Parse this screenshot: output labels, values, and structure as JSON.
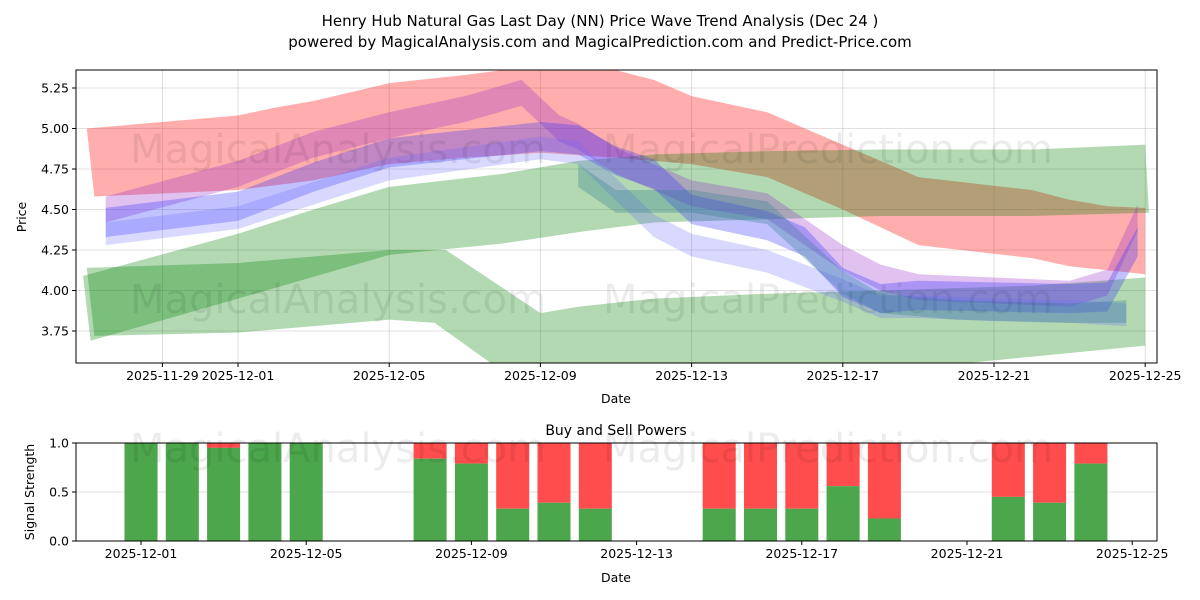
{
  "chart_data": [
    {
      "type": "area",
      "title_line1": "Henry Hub Natural Gas Last Day  (NN) Price Wave Trend Analysis (Dec 24 )",
      "title_line2": "powered by MagicalAnalysis.com and MagicalPrediction.com and Predict-Price.com",
      "xlabel": "Date",
      "ylabel": "Price",
      "ylim": [
        3.55,
        5.36
      ],
      "x_unit": "days offset from 2025-12-01",
      "xlim": [
        -4.2,
        24.3
      ],
      "grid": true,
      "x_ticks": [
        {
          "d": -2,
          "label": "2025-11-29"
        },
        {
          "d": 0,
          "label": "2025-12-01"
        },
        {
          "d": 4,
          "label": "2025-12-05"
        },
        {
          "d": 8,
          "label": "2025-12-09"
        },
        {
          "d": 12,
          "label": "2025-12-13"
        },
        {
          "d": 16,
          "label": "2025-12-17"
        },
        {
          "d": 20,
          "label": "2025-12-21"
        },
        {
          "d": 24,
          "label": "2025-12-25"
        }
      ],
      "y_ticks": [
        {
          "v": 3.75,
          "label": "3.75"
        },
        {
          "v": 4.0,
          "label": "4.00"
        },
        {
          "v": 4.25,
          "label": "4.25"
        },
        {
          "v": 4.5,
          "label": "4.50"
        },
        {
          "v": 4.75,
          "label": "4.75"
        },
        {
          "v": 5.0,
          "label": "5.00"
        },
        {
          "v": 5.25,
          "label": "5.25"
        }
      ],
      "bands": [
        {
          "name": "red-band",
          "color": "#ff0000",
          "opacity": 0.32,
          "upper": [
            [
              -4,
              5.0
            ],
            [
              0,
              5.08
            ],
            [
              1,
              5.13
            ],
            [
              2,
              5.17
            ],
            [
              4,
              5.28
            ],
            [
              6,
              5.33
            ],
            [
              7,
              5.36
            ],
            [
              8,
              5.4
            ],
            [
              9,
              5.4
            ],
            [
              10,
              5.36
            ],
            [
              11,
              5.3
            ],
            [
              12,
              5.2
            ],
            [
              14,
              5.1
            ],
            [
              16,
              4.9
            ],
            [
              18,
              4.7
            ],
            [
              21,
              4.62
            ],
            [
              22,
              4.56
            ],
            [
              23,
              4.52
            ],
            [
              24,
              4.51
            ]
          ],
          "lower": [
            [
              -3.8,
              4.58
            ],
            [
              0,
              4.62
            ],
            [
              2,
              4.68
            ],
            [
              4,
              4.78
            ],
            [
              6,
              4.82
            ],
            [
              8,
              4.85
            ],
            [
              10,
              4.82
            ],
            [
              12,
              4.78
            ],
            [
              14,
              4.7
            ],
            [
              16,
              4.5
            ],
            [
              18,
              4.28
            ],
            [
              21,
              4.2
            ],
            [
              22,
              4.15
            ],
            [
              24,
              4.1
            ]
          ]
        },
        {
          "name": "green-band-upper",
          "color": "#008000",
          "opacity": 0.3,
          "upper": [
            [
              -4.1,
              4.09
            ],
            [
              0,
              4.35
            ],
            [
              2,
              4.5
            ],
            [
              4,
              4.64
            ],
            [
              7,
              4.72
            ],
            [
              9,
              4.8
            ],
            [
              11,
              4.84
            ],
            [
              14,
              4.86
            ],
            [
              17,
              4.87
            ],
            [
              21,
              4.87
            ],
            [
              24,
              4.9
            ]
          ],
          "lower": [
            [
              -3.9,
              3.69
            ],
            [
              0,
              3.95
            ],
            [
              4,
              4.22
            ],
            [
              7,
              4.29
            ],
            [
              9,
              4.36
            ],
            [
              11,
              4.42
            ],
            [
              14,
              4.44
            ],
            [
              17,
              4.46
            ],
            [
              21,
              4.46
            ],
            [
              24.1,
              4.48
            ]
          ]
        },
        {
          "name": "green-band-lower",
          "color": "#008000",
          "opacity": 0.3,
          "upper": [
            [
              -4,
              4.14
            ],
            [
              0,
              4.17
            ],
            [
              4,
              4.25
            ],
            [
              5.5,
              4.25
            ],
            [
              8,
              3.86
            ],
            [
              9,
              3.9
            ],
            [
              11,
              3.95
            ],
            [
              14,
              3.98
            ],
            [
              17,
              4.0
            ],
            [
              21,
              4.03
            ],
            [
              24,
              4.08
            ]
          ],
          "lower": [
            [
              -3.8,
              3.72
            ],
            [
              0,
              3.74
            ],
            [
              4,
              3.82
            ],
            [
              5.2,
              3.8
            ],
            [
              7,
              3.5
            ],
            [
              17,
              3.5
            ],
            [
              24,
              3.66
            ]
          ]
        },
        {
          "name": "purple-wave-band",
          "color": "#9933cc",
          "opacity": 0.3,
          "upper": [
            [
              -3.5,
              4.58
            ],
            [
              0,
              4.8
            ],
            [
              2,
              4.98
            ],
            [
              4,
              5.1
            ],
            [
              6,
              5.2
            ],
            [
              7.5,
              5.3
            ],
            [
              8.5,
              5.08
            ],
            [
              9,
              5.03
            ],
            [
              10,
              4.88
            ],
            [
              11,
              4.78
            ],
            [
              12,
              4.68
            ],
            [
              14,
              4.6
            ],
            [
              16,
              4.28
            ],
            [
              17,
              4.16
            ],
            [
              18,
              4.1
            ],
            [
              20,
              4.08
            ],
            [
              22,
              4.06
            ],
            [
              23,
              4.13
            ],
            [
              23.8,
              4.53
            ]
          ],
          "lower": [
            [
              -3.5,
              4.42
            ],
            [
              0,
              4.64
            ],
            [
              2,
              4.82
            ],
            [
              4,
              4.94
            ],
            [
              6,
              5.04
            ],
            [
              7.5,
              5.14
            ],
            [
              8.5,
              4.92
            ],
            [
              9,
              4.87
            ],
            [
              10,
              4.72
            ],
            [
              11,
              4.62
            ],
            [
              12,
              4.52
            ],
            [
              14,
              4.44
            ],
            [
              16,
              4.12
            ],
            [
              17,
              4.0
            ],
            [
              18,
              3.94
            ],
            [
              20,
              3.92
            ],
            [
              22,
              3.9
            ],
            [
              23,
              3.97
            ],
            [
              23.8,
              4.37
            ]
          ]
        },
        {
          "name": "blue-wave-band",
          "color": "#3333ff",
          "opacity": 0.3,
          "upper": [
            [
              -3.5,
              4.51
            ],
            [
              0,
              4.61
            ],
            [
              2,
              4.79
            ],
            [
              4,
              4.94
            ],
            [
              6,
              4.99
            ],
            [
              8,
              5.04
            ],
            [
              9,
              5.02
            ],
            [
              10,
              4.89
            ],
            [
              11,
              4.81
            ],
            [
              12,
              4.59
            ],
            [
              14,
              4.49
            ],
            [
              15,
              4.39
            ],
            [
              16,
              4.14
            ],
            [
              17,
              4.04
            ],
            [
              18,
              4.06
            ],
            [
              20,
              4.05
            ],
            [
              22,
              4.04
            ],
            [
              23,
              4.05
            ],
            [
              23.8,
              4.39
            ]
          ],
          "lower": [
            [
              -3.5,
              4.33
            ],
            [
              0,
              4.43
            ],
            [
              2,
              4.61
            ],
            [
              4,
              4.76
            ],
            [
              6,
              4.81
            ],
            [
              8,
              4.86
            ],
            [
              9,
              4.84
            ],
            [
              10,
              4.71
            ],
            [
              11,
              4.63
            ],
            [
              12,
              4.41
            ],
            [
              14,
              4.31
            ],
            [
              15,
              4.21
            ],
            [
              16,
              3.96
            ],
            [
              17,
              3.86
            ],
            [
              18,
              3.88
            ],
            [
              20,
              3.87
            ],
            [
              22,
              3.86
            ],
            [
              23,
              3.87
            ],
            [
              23.8,
              4.21
            ]
          ]
        },
        {
          "name": "lightblue-wave-band",
          "color": "#6666ff",
          "opacity": 0.25,
          "upper": [
            [
              -3.5,
              4.42
            ],
            [
              0,
              4.52
            ],
            [
              4,
              4.82
            ],
            [
              8,
              4.95
            ],
            [
              9,
              4.92
            ],
            [
              11,
              4.47
            ],
            [
              12,
              4.35
            ],
            [
              14,
              4.25
            ],
            [
              16,
              4.07
            ],
            [
              17,
              3.97
            ],
            [
              18,
              3.97
            ],
            [
              20,
              3.95
            ],
            [
              22,
              3.94
            ],
            [
              23.5,
              3.92
            ]
          ],
          "lower": [
            [
              -3.5,
              4.28
            ],
            [
              0,
              4.38
            ],
            [
              4,
              4.68
            ],
            [
              8,
              4.81
            ],
            [
              9,
              4.78
            ],
            [
              11,
              4.33
            ],
            [
              12,
              4.21
            ],
            [
              14,
              4.11
            ],
            [
              16,
              3.93
            ],
            [
              17,
              3.83
            ],
            [
              18,
              3.83
            ],
            [
              20,
              3.81
            ],
            [
              22,
              3.8
            ],
            [
              23.5,
              3.78
            ]
          ]
        },
        {
          "name": "teal-wave-band",
          "color": "#2a7a8a",
          "opacity": 0.3,
          "upper": [
            [
              9,
              4.78
            ],
            [
              10,
              4.62
            ],
            [
              12,
              4.62
            ],
            [
              14,
              4.55
            ],
            [
              16,
              4.12
            ],
            [
              17,
              3.98
            ],
            [
              19,
              3.94
            ],
            [
              22,
              3.92
            ],
            [
              23.5,
              3.94
            ]
          ],
          "lower": [
            [
              9,
              4.64
            ],
            [
              10,
              4.48
            ],
            [
              12,
              4.48
            ],
            [
              14,
              4.41
            ],
            [
              16,
              3.98
            ],
            [
              17,
              3.86
            ],
            [
              19,
              3.82
            ],
            [
              22,
              3.8
            ],
            [
              23.5,
              3.8
            ]
          ]
        }
      ]
    },
    {
      "type": "bar",
      "title": "Buy and Sell Powers",
      "xlabel": "Date",
      "ylabel": "Signal Strength",
      "ylim": [
        0,
        1
      ],
      "x_unit": "days offset from 2025-12-01",
      "x_ticks": [
        {
          "d": 0,
          "label": "2025-12-01"
        },
        {
          "d": 4,
          "label": "2025-12-05"
        },
        {
          "d": 8,
          "label": "2025-12-09"
        },
        {
          "d": 12,
          "label": "2025-12-13"
        },
        {
          "d": 16,
          "label": "2025-12-17"
        },
        {
          "d": 20,
          "label": "2025-12-21"
        },
        {
          "d": 24,
          "label": "2025-12-25"
        }
      ],
      "y_ticks": [
        {
          "v": 0,
          "label": "0.0"
        },
        {
          "v": 0.5,
          "label": "0.5"
        },
        {
          "v": 1.0,
          "label": "1.0"
        }
      ],
      "colors": {
        "buy": "#4ca64c",
        "sell": "#ff4c4c"
      },
      "dates": [
        "2025-12-01",
        "2025-12-02",
        "2025-12-03",
        "2025-12-04",
        "2025-12-05",
        "2025-12-08",
        "2025-12-09",
        "2025-12-10",
        "2025-12-11",
        "2025-12-12",
        "2025-12-15",
        "2025-12-16",
        "2025-12-17",
        "2025-12-18",
        "2025-12-19",
        "2025-12-22",
        "2025-12-23",
        "2025-12-24"
      ],
      "day_offsets": [
        0,
        1,
        2,
        3,
        4,
        7,
        8,
        9,
        10,
        11,
        14,
        15,
        16,
        17,
        18,
        21,
        22,
        23
      ],
      "buy": [
        1.0,
        1.0,
        0.95,
        1.0,
        1.0,
        0.84,
        0.79,
        0.33,
        0.39,
        0.33,
        0.33,
        0.33,
        0.33,
        0.56,
        0.23,
        0.45,
        0.39,
        0.79
      ]
    }
  ],
  "watermarks": [
    "MagicalAnalysis.com",
    "MagicalPrediction.com"
  ]
}
